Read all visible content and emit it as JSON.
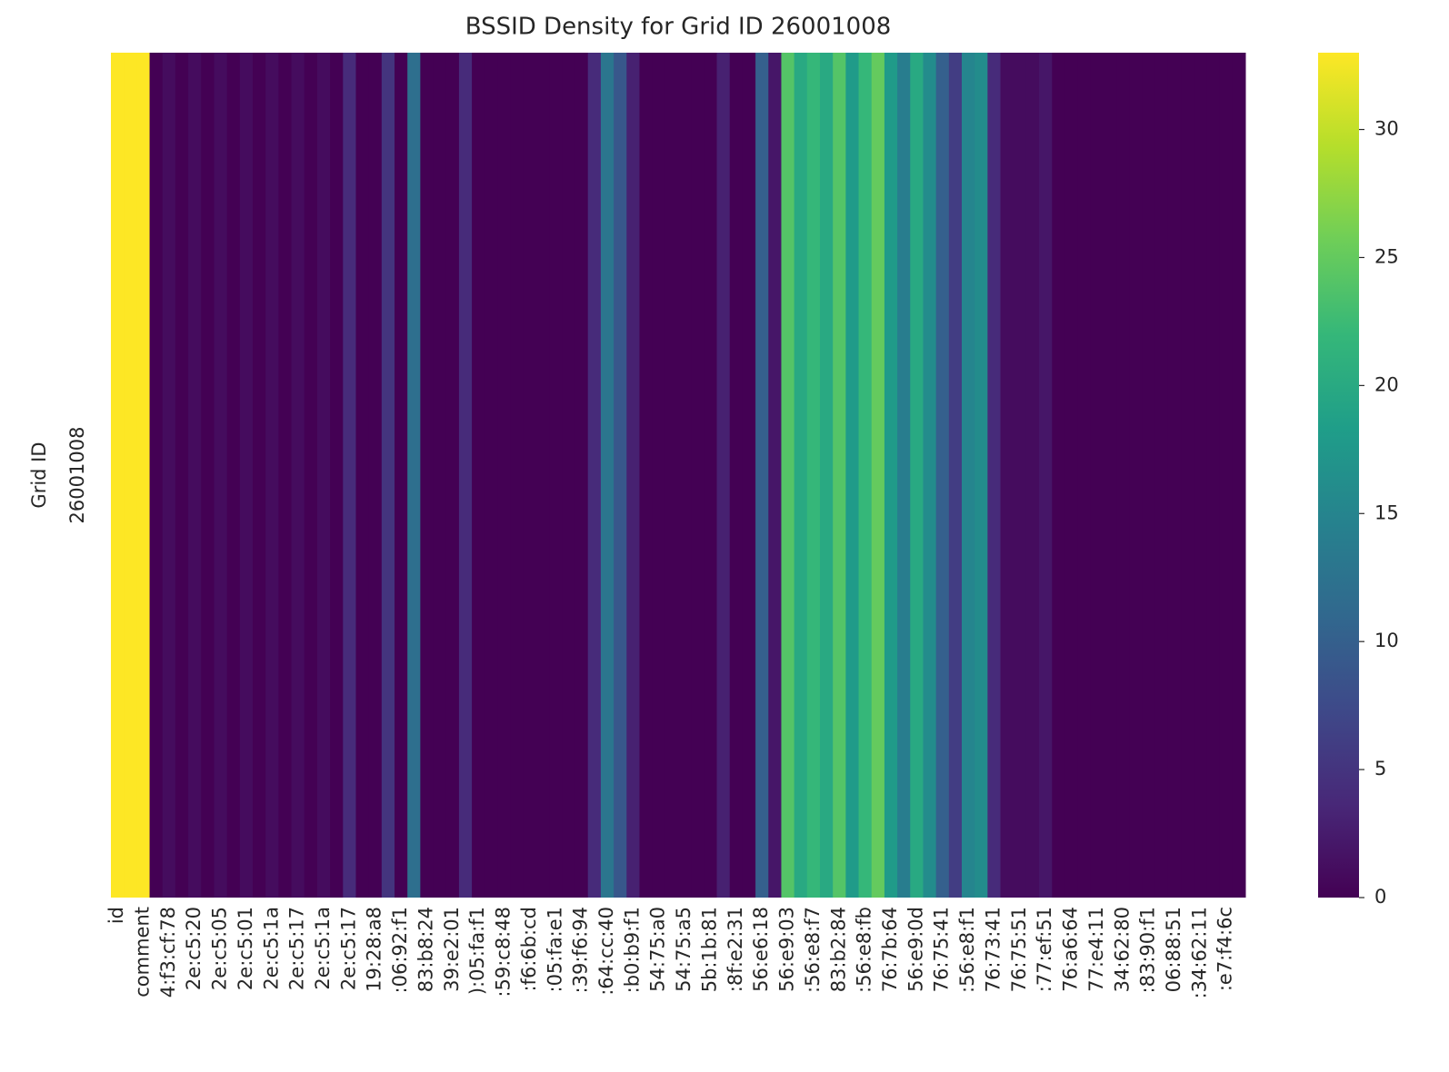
{
  "chart_data": {
    "type": "heatmap",
    "title": "BSSID Density for Grid ID 26001008",
    "ylabel": "Grid ID",
    "rows": [
      "26001008"
    ],
    "categories": [
      "id",
      null,
      "comment",
      null,
      "4:f3:cf:78",
      null,
      "2e:c5:20",
      null,
      "2e:c5:05",
      null,
      "2e:c5:01",
      null,
      "2e:c5:1a",
      null,
      "2e:c5:17",
      null,
      "2e:c5:1a",
      null,
      "2e:c5:17",
      null,
      "19:28:a8",
      null,
      ":06:92:f1",
      null,
      "83:b8:24",
      null,
      "39:e2:01",
      null,
      "):05:fa:f1",
      null,
      ":59:c8:48",
      null,
      ":f6:6b:cd",
      null,
      ":05:fa:e1",
      null,
      ":39:f6:94",
      null,
      ":64:cc:40",
      null,
      ":b0:b9:f1",
      null,
      "54:75:a0",
      null,
      "54:75:a5",
      null,
      "5b:1b:81",
      null,
      ":8f:e2:31",
      null,
      "56:e6:18",
      null,
      "56:e9:03",
      null,
      ":56:e8:f7",
      null,
      "83:b2:84",
      null,
      ":56:e8:fb",
      null,
      "76:7b:64",
      null,
      "56:e9:0d",
      null,
      "76:75:41",
      null,
      ":56:e8:f1",
      null,
      "76:73:41",
      null,
      "76:75:51",
      null,
      ":77:ef:51",
      null,
      "76:a6:64",
      null,
      "77:e4:11",
      null,
      "34:62:80",
      null,
      ":83:90:f1",
      null,
      "06:88:51",
      null,
      ":34:62:11",
      null,
      ":e7:f4:6c",
      null
    ],
    "values": [
      [
        33,
        33,
        33,
        0,
        1,
        0,
        1,
        0,
        1,
        0,
        1,
        0,
        1,
        0,
        1,
        0,
        1,
        0,
        4,
        0,
        0,
        5,
        0,
        12,
        0,
        0,
        0,
        4,
        0,
        0,
        0,
        0,
        0,
        0,
        0,
        0,
        0,
        4,
        13,
        9,
        3,
        0,
        0,
        0,
        0,
        0,
        0,
        3,
        0,
        0,
        10,
        2,
        24,
        20,
        22,
        20,
        24,
        18,
        22,
        25,
        18,
        14,
        20,
        16,
        10,
        6,
        15,
        16,
        4,
        1,
        1,
        1,
        2,
        0,
        0,
        0,
        0,
        0,
        0,
        0,
        0,
        0,
        0,
        0,
        0,
        0,
        0,
        0
      ]
    ],
    "colormap": "viridis",
    "clim": [
      0,
      33
    ],
    "colorbar_ticks": [
      0,
      5,
      10,
      15,
      20,
      25,
      30
    ]
  }
}
